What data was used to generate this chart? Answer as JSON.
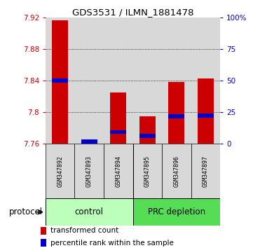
{
  "title": "GDS3531 / ILMN_1881478",
  "samples": [
    "GSM347892",
    "GSM347893",
    "GSM347894",
    "GSM347895",
    "GSM347896",
    "GSM347897"
  ],
  "red_values": [
    7.916,
    7.765,
    7.825,
    7.795,
    7.838,
    7.843
  ],
  "blue_values": [
    7.84,
    7.763,
    7.775,
    7.77,
    7.795,
    7.796
  ],
  "ymin": 7.76,
  "ymax": 7.92,
  "yticks_left": [
    7.76,
    7.8,
    7.84,
    7.88,
    7.92
  ],
  "yticks_right": [
    0,
    25,
    50,
    75,
    100
  ],
  "yticks_right_labels": [
    "0",
    "25",
    "50",
    "75",
    "100%"
  ],
  "left_color": "#cc0000",
  "right_color": "#0000cc",
  "bar_color": "#cc0000",
  "blue_color": "#0000cc",
  "bar_width": 0.55,
  "groups": [
    {
      "label": "control",
      "start": 0,
      "end": 2,
      "color": "#bbffbb"
    },
    {
      "label": "PRC depletion",
      "start": 3,
      "end": 5,
      "color": "#55dd55"
    }
  ],
  "protocol_label": "protocol",
  "legend_red": "transformed count",
  "legend_blue": "percentile rank within the sample",
  "bg_color": "#d8d8d8",
  "grid_color": "#000000",
  "fig_width": 3.61,
  "fig_height": 3.54,
  "dpi": 100
}
